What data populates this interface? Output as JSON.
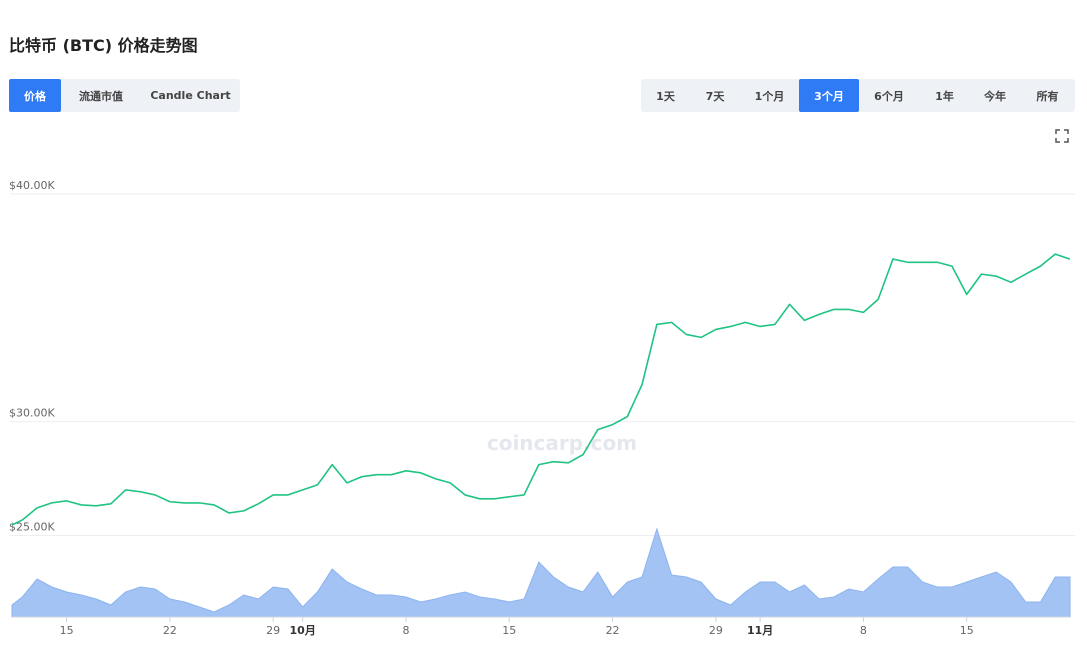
{
  "title": "比特币 (BTC) 价格走势图",
  "tabs": {
    "items": [
      "价格",
      "流通市值",
      "Candle Chart"
    ],
    "active": 0
  },
  "ranges": {
    "items": [
      "1天",
      "7天",
      "1个月",
      "3个月",
      "6个月",
      "1年",
      "今年",
      "所有"
    ],
    "active": 3
  },
  "chart_data": {
    "type": "line",
    "watermark": "coincarp.com",
    "color": "#1fc382",
    "volume_color": "#a3c3f4",
    "grid": true,
    "x": [
      11.3,
      12,
      13,
      14,
      15,
      16,
      17,
      18,
      19,
      20,
      21,
      22,
      23,
      24,
      25,
      26,
      27,
      28,
      29,
      30,
      31,
      32,
      33,
      34,
      35,
      36,
      37,
      38,
      39,
      40,
      41,
      42,
      43,
      44,
      45,
      46,
      47,
      48,
      49,
      50,
      51,
      52,
      53,
      54,
      55,
      56,
      57,
      58,
      59,
      60,
      61,
      62,
      63,
      64,
      65,
      66,
      67,
      68,
      69,
      70,
      71,
      72,
      73,
      74,
      75,
      76,
      77,
      78,
      79,
      80,
      81,
      82,
      83
    ],
    "values": [
      25460,
      25680,
      26210,
      26430,
      26520,
      26340,
      26300,
      26390,
      27000,
      26920,
      26780,
      26480,
      26430,
      26430,
      26340,
      25990,
      26080,
      26390,
      26780,
      26780,
      27000,
      27220,
      28110,
      27310,
      27580,
      27670,
      27670,
      27840,
      27750,
      27490,
      27310,
      26780,
      26610,
      26610,
      26700,
      26780,
      28110,
      28240,
      28190,
      28550,
      29650,
      29870,
      30220,
      31630,
      34270,
      34360,
      33830,
      33700,
      34050,
      34180,
      34360,
      34180,
      34270,
      35150,
      34450,
      34710,
      34930,
      34930,
      34800,
      35370,
      37140,
      37000,
      37000,
      37000,
      36830,
      35590,
      36480,
      36390,
      36120,
      36480,
      36830,
      37360,
      37140
    ],
    "volume": [
      12,
      20,
      38,
      30,
      25,
      22,
      18,
      12,
      25,
      30,
      28,
      18,
      15,
      10,
      5,
      12,
      22,
      18,
      30,
      28,
      10,
      25,
      48,
      35,
      28,
      22,
      22,
      20,
      15,
      18,
      22,
      25,
      20,
      18,
      15,
      18,
      55,
      40,
      30,
      25,
      45,
      20,
      35,
      40,
      88,
      42,
      40,
      35,
      18,
      12,
      25,
      35,
      35,
      25,
      32,
      18,
      20,
      28,
      25,
      38,
      50,
      50,
      35,
      30,
      30,
      35,
      40,
      45,
      35,
      15,
      15,
      40,
      40
    ],
    "vlim": [
      0,
      100
    ],
    "xlim": [
      11.3,
      83
    ],
    "xticks": [
      15,
      22,
      29,
      {
        "value": 31,
        "label": "10月"
      },
      {
        "value": 38,
        "label": "8"
      },
      {
        "value": 45,
        "label": "15"
      },
      {
        "value": 52,
        "label": "22"
      },
      {
        "value": 59,
        "label": "29"
      },
      {
        "value": 62,
        "label": "11月"
      },
      {
        "value": 69,
        "label": "8"
      },
      {
        "value": 76,
        "label": "15"
      }
    ],
    "ylim": [
      24800,
      41800
    ],
    "yticks": [
      {
        "value": 25000,
        "label": "$25.00K"
      },
      {
        "value": 30000,
        "label": "$30.00K"
      },
      {
        "value": 40000,
        "label": "$40.00K"
      }
    ]
  }
}
